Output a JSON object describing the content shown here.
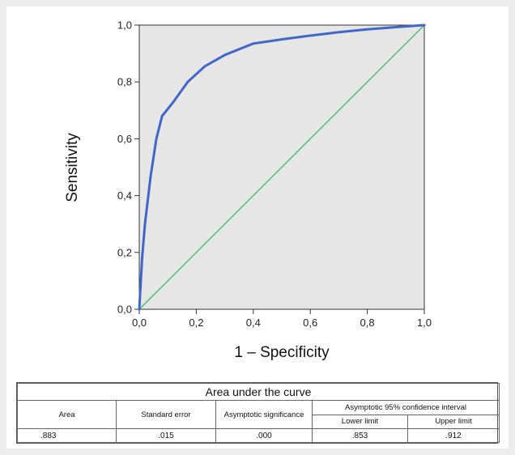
{
  "chart_data": {
    "type": "line",
    "xlabel": "1 – Specificity",
    "ylabel": "Sensitivity",
    "xlim": [
      0,
      1
    ],
    "ylim": [
      0,
      1
    ],
    "grid": false,
    "plot_background": "#e6e6e6",
    "x_ticks": [
      "0,0",
      "0,2",
      "0,4",
      "0,6",
      "0,8",
      "1,0"
    ],
    "y_ticks": [
      "0,0",
      "0,2",
      "0,4",
      "0,6",
      "0,8",
      "1,0"
    ],
    "series": [
      {
        "color": "#3f66c8",
        "x": [
          0,
          0.01,
          0.02,
          0.04,
          0.06,
          0.08,
          0.12,
          0.17,
          0.23,
          0.3,
          0.4,
          0.5,
          0.6,
          0.7,
          0.8,
          0.9,
          1.0
        ],
        "y": [
          0,
          0.18,
          0.3,
          0.47,
          0.6,
          0.68,
          0.73,
          0.8,
          0.855,
          0.895,
          0.935,
          0.95,
          0.963,
          0.975,
          0.985,
          0.993,
          1.0
        ]
      },
      {
        "color": "#4fbf72",
        "x": [
          0,
          1
        ],
        "y": [
          0,
          1
        ]
      }
    ]
  },
  "table": {
    "title": "Area under the curve",
    "headers": {
      "area": "Area",
      "std_error": "Standard error",
      "asym_sig": "Asymptotic significance",
      "ci": "Asymptotic 95% confidence interval",
      "lower": "Lower limit",
      "upper": "Upper limit"
    },
    "values": {
      "area": ".883",
      "std_error": ".015",
      "asym_sig": ".000",
      "lower": ".853",
      "upper": ".912"
    }
  }
}
